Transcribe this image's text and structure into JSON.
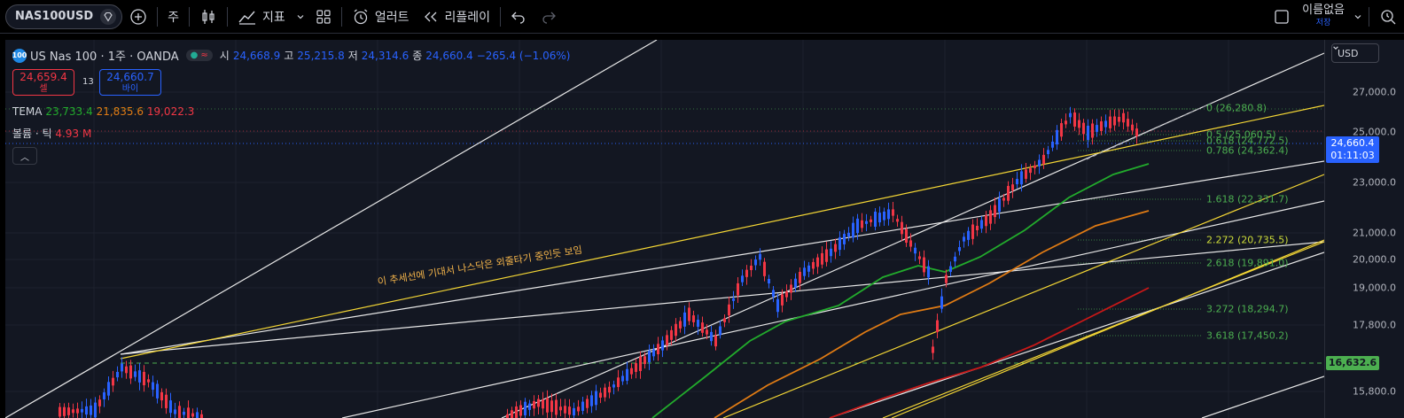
{
  "toolbar": {
    "symbol": "NAS100USD",
    "interval": "주",
    "indicators_label": "지표",
    "alerts_label": "얼러트",
    "replay_label": "리플레이",
    "layout_name": "이름없음",
    "layout_status": "저장"
  },
  "legend": {
    "badge": "100",
    "title": "US Nas 100 · 1주 · OANDA",
    "open_label": "시",
    "open": "24,668.9",
    "high_label": "고",
    "high": "25,215.8",
    "low_label": "저",
    "low": "24,314.6",
    "close_label": "종",
    "close": "24,660.4",
    "change": "−265.4 (−1.06%)"
  },
  "trade": {
    "sell_price": "24,659.4",
    "sell_label": "셀",
    "spread": "13",
    "buy_price": "24,660.7",
    "buy_label": "바이"
  },
  "indicators": {
    "tema_label": "TEMA",
    "tema_values": [
      "23,733.4",
      "21,835.6",
      "19,022.3"
    ],
    "volume_label": "볼륨 · 틱",
    "volume_value": "4.93 M"
  },
  "price_scale": {
    "currency": "USD",
    "ticks": [
      "27,000.0",
      "25,000.0",
      "23,000.0",
      "21,000.0",
      "20,000.0",
      "19,000.0",
      "17,800.0",
      "15,800.0"
    ],
    "current_price": "24,660.4",
    "countdown": "01:11:03",
    "hline_price": "16,632.6"
  },
  "fib_levels": [
    {
      "label": "0 (26,280.8)",
      "color": "#4caf50"
    },
    {
      "label": "0.5 (25,060.5)",
      "color": "#4caf50"
    },
    {
      "label": "0.618 (24,772.5)",
      "color": "#4caf50"
    },
    {
      "label": "0.786 (24,362.4)",
      "color": "#4caf50"
    },
    {
      "label": "1.618 (22,331.7)",
      "color": "#4caf50"
    },
    {
      "label": "2.272 (20,735.5)",
      "color": "#cddc39"
    },
    {
      "label": "2.618 (19,891.0)",
      "color": "#4caf50"
    },
    {
      "label": "3.272 (18,294.7)",
      "color": "#4caf50"
    },
    {
      "label": "3.618 (17,450.2)",
      "color": "#4caf50"
    }
  ],
  "annotation": "이 추세선에 기대서 나스닥은 외줄타기 중인듯 보임",
  "colors": {
    "up": "#f23645",
    "down": "#2962ff",
    "tema_fast": "#22ab2c",
    "tema_mid": "#e07b14",
    "tema_slow": "#c81818",
    "trendline": "#f5d735",
    "accent": "#2962ff"
  }
}
